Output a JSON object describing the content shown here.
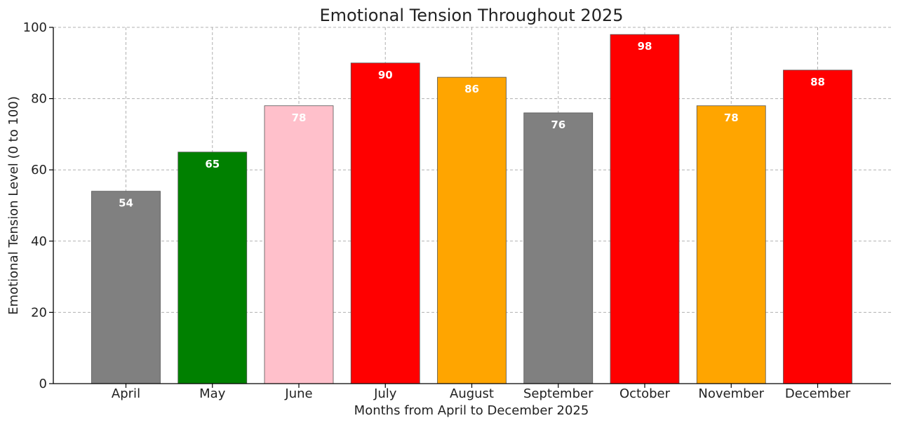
{
  "chart_data": {
    "type": "bar",
    "title": "Emotional Tension Throughout 2025",
    "xlabel": "Months from April to December 2025",
    "ylabel": "Emotional Tension Level (0 to 100)",
    "categories": [
      "April",
      "May",
      "June",
      "July",
      "August",
      "September",
      "October",
      "November",
      "December"
    ],
    "values": [
      54,
      65,
      78,
      90,
      86,
      76,
      98,
      78,
      88
    ],
    "colors": [
      "#808080",
      "#008000",
      "#ffc0cb",
      "#ff0000",
      "#ffa500",
      "#808080",
      "#ff0000",
      "#ffa500",
      "#ff0000"
    ],
    "label_color": "#ffffff",
    "ylim": [
      0,
      100
    ],
    "yticks": [
      0,
      20,
      40,
      60,
      80,
      100
    ],
    "grid": true
  }
}
